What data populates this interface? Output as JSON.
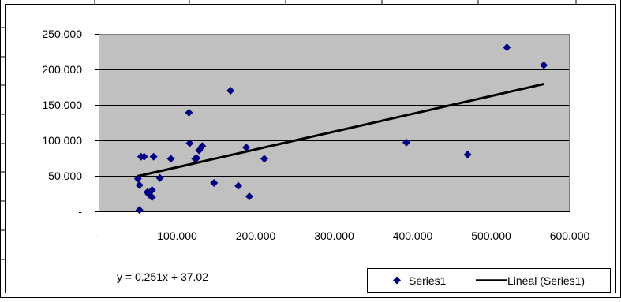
{
  "chart_data": {
    "type": "scatter",
    "title": "",
    "xlabel": "",
    "ylabel": "",
    "xlim": [
      0,
      600
    ],
    "ylim": [
      0,
      250
    ],
    "x_ticks": [
      0,
      100,
      200,
      300,
      400,
      500,
      600
    ],
    "x_tick_labels": [
      "-",
      "100.000",
      "200.000",
      "300.000",
      "400.000",
      "500.000",
      "600.000"
    ],
    "y_ticks": [
      0,
      50,
      100,
      150,
      200,
      250
    ],
    "y_tick_labels": [
      "-",
      "50.000",
      "100.000",
      "150.000",
      "200.000",
      "250.000"
    ],
    "grid": "horizontal",
    "plot_background": "#c0c0c0",
    "series": [
      {
        "name": "Series1",
        "marker": "diamond",
        "color": "#000080",
        "points": [
          [
            50,
            46
          ],
          [
            52,
            37
          ],
          [
            52,
            2
          ],
          [
            54,
            77
          ],
          [
            58,
            77
          ],
          [
            62,
            27
          ],
          [
            64,
            24
          ],
          [
            68,
            30
          ],
          [
            68,
            20
          ],
          [
            70,
            77
          ],
          [
            78,
            47
          ],
          [
            92,
            74
          ],
          [
            115,
            139
          ],
          [
            116,
            96
          ],
          [
            123,
            74
          ],
          [
            125,
            75
          ],
          [
            128,
            86
          ],
          [
            132,
            92
          ],
          [
            147,
            40
          ],
          [
            168,
            170
          ],
          [
            178,
            36
          ],
          [
            188,
            90
          ],
          [
            192,
            21
          ],
          [
            211,
            74
          ],
          [
            392,
            97
          ],
          [
            470,
            80
          ],
          [
            520,
            231
          ],
          [
            567,
            206
          ]
        ]
      }
    ],
    "trendline": {
      "name": "Lineal (Series1)",
      "type": "linear",
      "color": "#000000",
      "slope": 0.251,
      "intercept": 37.02,
      "x_range": [
        50,
        567
      ],
      "equation_label": "y = 0.251x + 37.02"
    },
    "legend": {
      "placement": "bottom-right",
      "entries": [
        "Series1",
        "Lineal (Series1)"
      ]
    }
  }
}
